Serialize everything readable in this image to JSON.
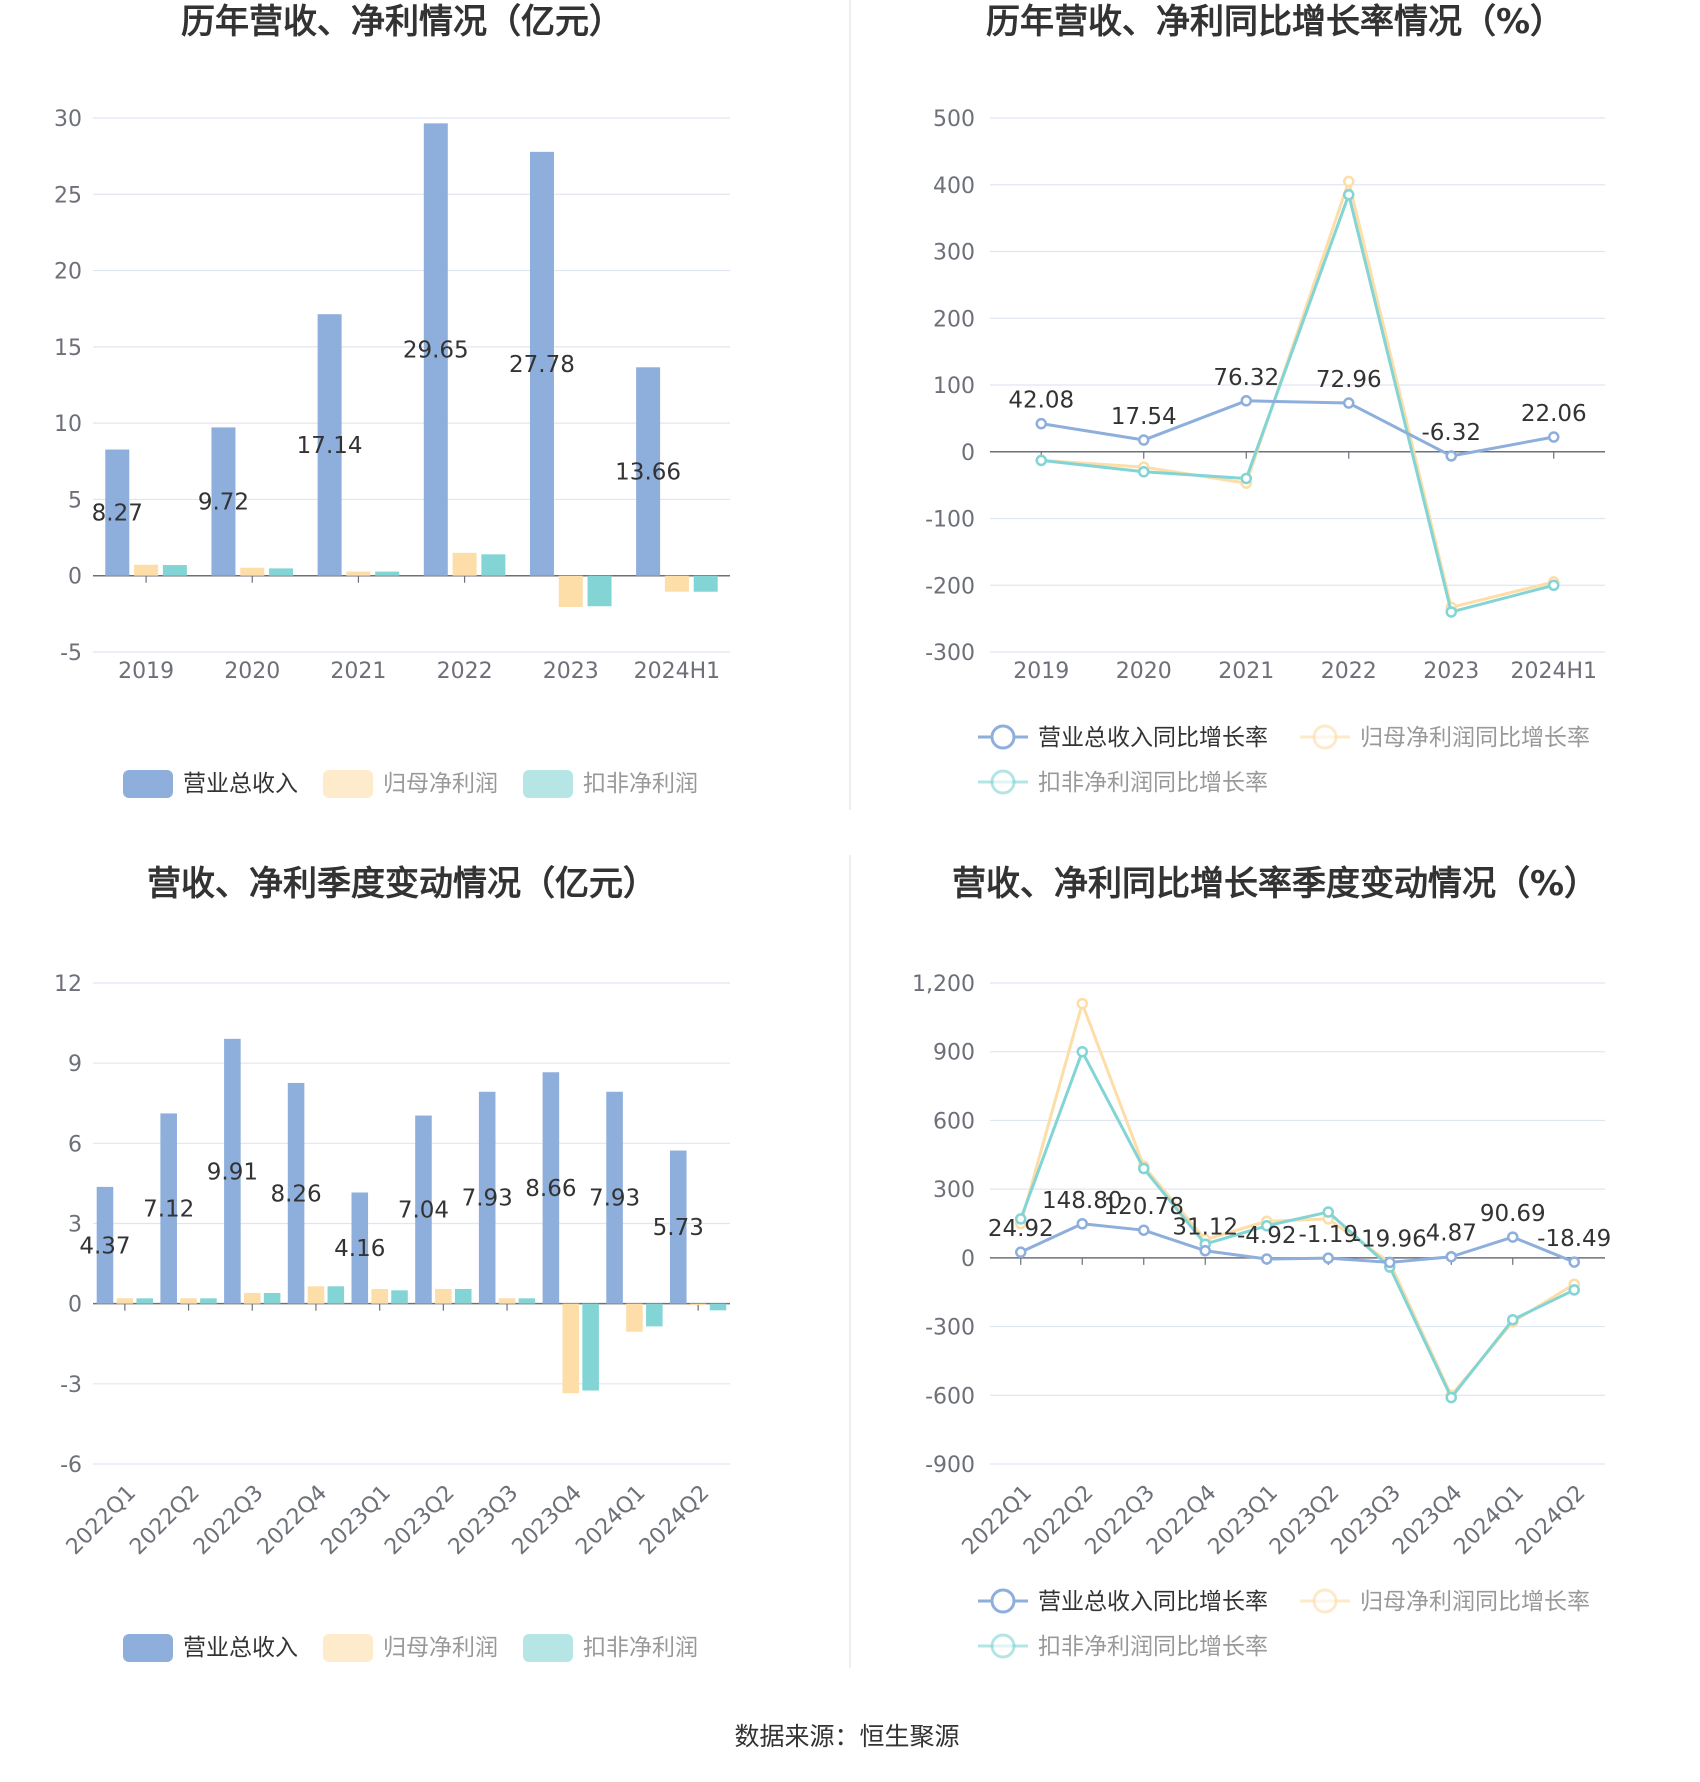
{
  "source_text": "数据来源：恒生聚源",
  "chart_data": [
    {
      "type": "bar",
      "title": "历年营收、净利情况（亿元）",
      "categories": [
        "2019",
        "2020",
        "2021",
        "2022",
        "2023",
        "2024H1"
      ],
      "ylim": [
        -5,
        30
      ],
      "yticks": [
        30,
        25,
        20,
        15,
        10,
        5,
        0,
        -5
      ],
      "ytick_labels": [
        "30",
        "25",
        "20",
        "15",
        "10",
        "5",
        "0",
        "-5"
      ],
      "label_series": 0,
      "series": [
        {
          "name": "营业总收入",
          "color": "#8eaedc",
          "values": [
            8.27,
            9.72,
            17.14,
            29.65,
            27.78,
            13.66
          ],
          "labels": [
            "8.27",
            "9.72",
            "17.14",
            "29.65",
            "27.78",
            "13.66"
          ]
        },
        {
          "name": "归母净利润",
          "color": "#fddda8",
          "values": [
            0.72,
            0.52,
            0.27,
            1.5,
            -2.05,
            -1.05
          ]
        },
        {
          "name": "扣非净利润",
          "color": "#83d4d4",
          "values": [
            0.7,
            0.48,
            0.27,
            1.4,
            -2.0,
            -1.05
          ]
        }
      ],
      "legend": "bottom",
      "grid": true
    },
    {
      "type": "line",
      "title": "历年营收、净利同比增长率情况（%）",
      "categories": [
        "2019",
        "2020",
        "2021",
        "2022",
        "2023",
        "2024H1"
      ],
      "ylim": [
        -300,
        500
      ],
      "yticks": [
        500,
        400,
        300,
        200,
        100,
        0,
        -100,
        -200,
        -300
      ],
      "ytick_labels": [
        "500",
        "400",
        "300",
        "200",
        "100",
        "0",
        "-100",
        "-200",
        "-300"
      ],
      "label_series": 0,
      "series": [
        {
          "name": "营业总收入同比增长率",
          "color": "#8eaedc",
          "values": [
            42.08,
            17.54,
            76.32,
            72.96,
            -6.32,
            22.06
          ],
          "labels": [
            "42.08",
            "17.54",
            "76.32",
            "72.96",
            "-6.32",
            "22.06"
          ]
        },
        {
          "name": "归母净利润同比增长率",
          "color": "#fddda8",
          "values": [
            -13,
            -23,
            -47,
            405,
            -233,
            -195
          ]
        },
        {
          "name": "扣非净利润同比增长率",
          "color": "#83d4d4",
          "values": [
            -13,
            -30,
            -40,
            385,
            -240,
            -200
          ]
        }
      ],
      "legend": "bottom",
      "grid": true
    },
    {
      "type": "bar",
      "title": "营收、净利季度变动情况（亿元）",
      "categories": [
        "2022Q1",
        "2022Q2",
        "2022Q3",
        "2022Q4",
        "2023Q1",
        "2023Q2",
        "2023Q3",
        "2023Q4",
        "2024Q1",
        "2024Q2"
      ],
      "ylim": [
        -6,
        12
      ],
      "yticks": [
        12,
        9,
        6,
        3,
        0,
        -3,
        -6
      ],
      "ytick_labels": [
        "12",
        "9",
        "6",
        "3",
        "0",
        "-3",
        "-6"
      ],
      "label_series": 0,
      "series": [
        {
          "name": "营业总收入",
          "color": "#8eaedc",
          "values": [
            4.37,
            7.12,
            9.91,
            8.26,
            4.16,
            7.04,
            7.93,
            8.66,
            7.93,
            5.73
          ],
          "labels": [
            "4.37",
            "7.12",
            "9.91",
            "8.26",
            "4.16",
            "7.04",
            "7.93",
            "8.66",
            "7.93",
            "5.73"
          ]
        },
        {
          "name": "归母净利润",
          "color": "#fddda8",
          "values": [
            0.2,
            0.2,
            0.4,
            0.65,
            0.55,
            0.55,
            0.2,
            -3.35,
            -1.05,
            -0.05
          ]
        },
        {
          "name": "扣非净利润",
          "color": "#83d4d4",
          "values": [
            0.2,
            0.2,
            0.4,
            0.65,
            0.5,
            0.55,
            0.2,
            -3.25,
            -0.85,
            -0.25
          ]
        }
      ],
      "legend": "bottom",
      "grid": true
    },
    {
      "type": "line",
      "title": "营收、净利同比增长率季度变动情况（%）",
      "categories": [
        "2022Q1",
        "2022Q2",
        "2022Q3",
        "2022Q4",
        "2023Q1",
        "2023Q2",
        "2023Q3",
        "2023Q4",
        "2024Q1",
        "2024Q2"
      ],
      "ylim": [
        -900,
        1200
      ],
      "yticks": [
        1200,
        900,
        600,
        300,
        0,
        -300,
        -600,
        -900
      ],
      "ytick_labels": [
        "1,200",
        "900",
        "600",
        "300",
        "0",
        "-300",
        "-600",
        "-900"
      ],
      "label_series": 0,
      "series": [
        {
          "name": "营业总收入同比增长率",
          "color": "#8eaedc",
          "values": [
            24.92,
            148.8,
            120.78,
            31.12,
            -4.92,
            -1.19,
            -19.96,
            4.87,
            90.69,
            -18.49
          ],
          "labels": [
            "24.92",
            "148.80",
            "120.78",
            "31.12",
            "-4.92",
            "-1.19",
            "-19.96",
            "4.87",
            "90.69",
            "-18.49"
          ]
        },
        {
          "name": "归母净利润同比增长率",
          "color": "#fddda8",
          "values": [
            150,
            1110,
            400,
            80,
            160,
            170,
            -20,
            -600,
            -280,
            -115
          ]
        },
        {
          "name": "扣非净利润同比增长率",
          "color": "#83d4d4",
          "values": [
            170,
            900,
            390,
            60,
            140,
            200,
            -40,
            -610,
            -270,
            -140
          ]
        }
      ],
      "legend": "bottom",
      "grid": true
    }
  ]
}
